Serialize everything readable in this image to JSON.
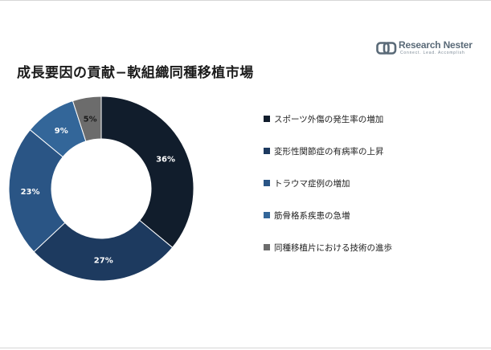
{
  "title": "成長要因の貢献−軟組織同種移植市場",
  "logo": {
    "name": "Research Nester",
    "tagline": "Connect. Lead. Accomplish"
  },
  "colors": {
    "title": "#1b1b1b",
    "legend_text": "#222222",
    "logo": "#5a6a78"
  },
  "chart_data": {
    "type": "pie",
    "variant": "donut",
    "title": "",
    "categories": [
      "スポーツ外傷の発生率の増加",
      "変形性関節症の有病率の上昇",
      "トラウマ症例の増加",
      "筋骨格系疾患の急増",
      "同種移植片における技術の進歩"
    ],
    "values": [
      36,
      27,
      23,
      9,
      5
    ],
    "labels": [
      "36%",
      "27%",
      "23%",
      "9%",
      "5%"
    ],
    "colors": [
      "#111d2c",
      "#1d3a5f",
      "#2a5585",
      "#336699",
      "#6c6c6c"
    ],
    "label_colors": [
      "#ffffff",
      "#ffffff",
      "#ffffff",
      "#ffffff",
      "#1b1b1b"
    ],
    "legend_position": "right",
    "start_angle_deg": 0,
    "direction": "clockwise"
  }
}
